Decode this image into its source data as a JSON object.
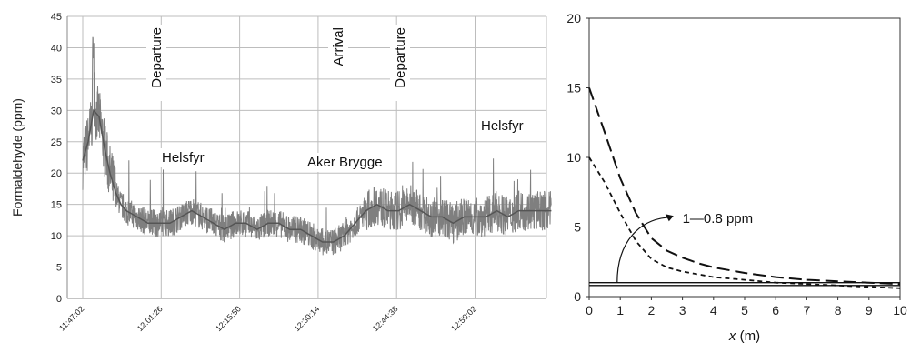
{
  "chart_data": [
    {
      "type": "line",
      "ylabel": "Formaldehyde (ppm)",
      "xlabel": "",
      "ylim": [
        0,
        45
      ],
      "yticks": [
        "0",
        "5",
        "10",
        "15",
        "20",
        "25",
        "30",
        "35",
        "40",
        "45"
      ],
      "xticks": [
        "11:47:02",
        "12:01:26",
        "12:15:50",
        "12:30:14",
        "12:44:38",
        "12:59:02"
      ],
      "grid": true,
      "annotations": {
        "departure_1": "Departure",
        "arrival": "Arrival",
        "departure_2": "Departure",
        "helsfyr_1": "Helsfyr",
        "aker_brygge": "Aker Brygge",
        "helsfyr_2": "Helsfyr"
      },
      "x_minutes": [
        0,
        1,
        2,
        3,
        4,
        5,
        6,
        7,
        8,
        10,
        12,
        14,
        16,
        18,
        20,
        22,
        24,
        26,
        28,
        30,
        32,
        34,
        36,
        38,
        40,
        42,
        44,
        46,
        48,
        50,
        52,
        54,
        56,
        58,
        60,
        62,
        64,
        66,
        68,
        70,
        72,
        74,
        76,
        78,
        80,
        82,
        84,
        86
      ],
      "values": [
        22,
        25,
        30,
        29,
        24,
        20,
        17,
        15,
        14,
        13,
        12,
        12,
        12,
        13,
        14,
        13,
        12,
        11,
        12,
        12,
        11,
        12,
        12,
        11,
        11,
        10,
        9,
        9,
        10,
        12,
        14,
        15,
        14,
        14,
        15,
        14,
        13,
        13,
        12,
        13,
        13,
        13,
        14,
        13,
        14,
        14,
        14,
        14
      ]
    },
    {
      "type": "line",
      "xlabel_var": "x",
      "xlabel_unit": " (m)",
      "xlim": [
        0,
        10
      ],
      "ylim": [
        0,
        20
      ],
      "xticks": [
        "0",
        "1",
        "2",
        "3",
        "4",
        "5",
        "6",
        "7",
        "8",
        "9",
        "10"
      ],
      "yticks": [
        "0",
        "5",
        "10",
        "15",
        "20"
      ],
      "grid": false,
      "annotation": "1—0.8 ppm",
      "series": [
        {
          "style": "long-dash",
          "x": [
            0,
            0.5,
            1,
            1.5,
            2,
            2.5,
            3,
            3.5,
            4,
            5,
            6,
            7,
            8,
            9,
            10
          ],
          "y": [
            15,
            11.8,
            8.5,
            6.0,
            4.2,
            3.3,
            2.8,
            2.4,
            2.1,
            1.7,
            1.4,
            1.2,
            1.1,
            1.0,
            0.9
          ]
        },
        {
          "style": "short-dash",
          "x": [
            0,
            0.5,
            1,
            1.5,
            2,
            2.5,
            3,
            3.5,
            4,
            5,
            6,
            7,
            8,
            9,
            10
          ],
          "y": [
            10,
            8.2,
            6.0,
            4.0,
            2.7,
            2.1,
            1.8,
            1.6,
            1.4,
            1.2,
            1.0,
            0.9,
            0.8,
            0.7,
            0.6
          ]
        },
        {
          "style": "solid",
          "x": [
            0,
            10
          ],
          "y": [
            1,
            1
          ]
        },
        {
          "style": "solid",
          "x": [
            0,
            10
          ],
          "y": [
            0.8,
            0.8
          ]
        }
      ]
    }
  ]
}
